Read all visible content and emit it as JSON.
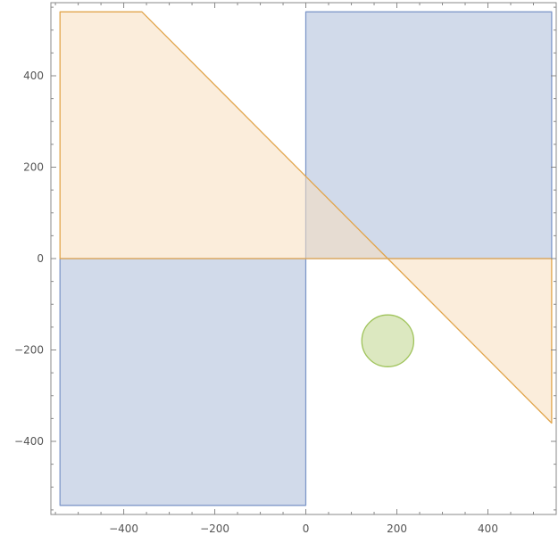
{
  "chart_data": {
    "type": "area",
    "title": "",
    "xlabel": "",
    "ylabel": "",
    "xlim": [
      -560,
      550
    ],
    "ylim": [
      -560,
      560
    ],
    "x_ticks": [
      -400,
      -200,
      0,
      200,
      400
    ],
    "x_tick_labels": [
      "−400",
      "−200",
      "0",
      "200",
      "400"
    ],
    "y_ticks": [
      -400,
      -200,
      0,
      200,
      400
    ],
    "y_tick_labels": [
      "−400",
      "−200",
      "0",
      "200",
      "400"
    ],
    "grid": false,
    "legend": "none",
    "colors": {
      "blue_fill": "#cfd8e9",
      "blue_stroke": "#7f98c9",
      "orange_fill": "#f7dfbd",
      "orange_stroke": "#e1a54c",
      "overlap_fill": "#d4c4ad",
      "green_fill": "#d8e6b9",
      "green_stroke": "#9fc35a",
      "axis": "#888888",
      "tick_label": "#555555"
    },
    "series": [
      {
        "kind": "polygon",
        "color_key": "blue",
        "points": [
          [
            0,
            540
          ],
          [
            540,
            540
          ],
          [
            540,
            0
          ],
          [
            0,
            0
          ]
        ]
      },
      {
        "kind": "polygon",
        "color_key": "blue",
        "points": [
          [
            -540,
            0
          ],
          [
            0,
            0
          ],
          [
            0,
            -540
          ],
          [
            -540,
            -540
          ]
        ]
      },
      {
        "kind": "polygon",
        "color_key": "orange",
        "points": [
          [
            -540,
            540
          ],
          [
            -360,
            540
          ],
          [
            0,
            180
          ],
          [
            180,
            0
          ],
          [
            -540,
            0
          ]
        ]
      },
      {
        "kind": "polygon",
        "color_key": "orange",
        "points": [
          [
            180,
            0
          ],
          [
            540,
            0
          ],
          [
            540,
            -360
          ]
        ]
      },
      {
        "kind": "circle",
        "color_key": "green",
        "center": [
          180,
          -180
        ],
        "radius": 57
      }
    ]
  }
}
